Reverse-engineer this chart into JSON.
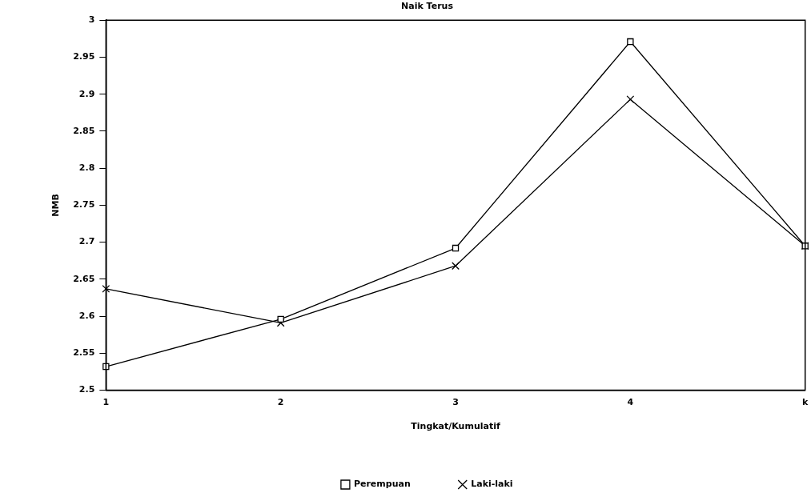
{
  "chart_data": {
    "type": "line",
    "title": "Naik Terus",
    "xlabel": "Tingkat/Kumulatif",
    "ylabel": "NMB",
    "categories": [
      "1",
      "2",
      "3",
      "4",
      "k"
    ],
    "series": [
      {
        "name": "Perempuan",
        "color": "#000000",
        "marker": "square",
        "values": [
          2.532,
          2.596,
          2.692,
          2.971,
          2.695
        ]
      },
      {
        "name": "Laki-laki",
        "color": "#000000",
        "marker": "cross",
        "values": [
          2.637,
          2.591,
          2.668,
          2.893,
          2.695
        ]
      }
    ],
    "ylim": [
      2.5,
      3
    ],
    "yticks": [
      2.5,
      2.55,
      2.6,
      2.65,
      2.7,
      2.75,
      2.8,
      2.85,
      2.9,
      2.95,
      3
    ],
    "grid": false,
    "legend": "bottom",
    "line_style": "solid"
  }
}
